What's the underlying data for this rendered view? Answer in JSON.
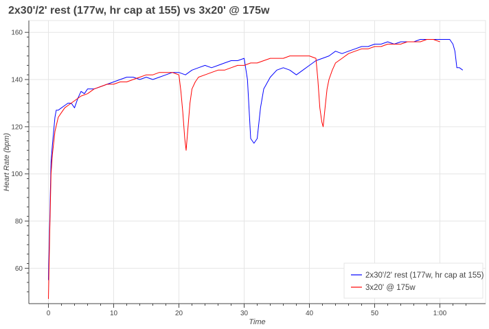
{
  "chart_data": {
    "type": "line",
    "title": "2x30'/2' rest (177w, hr cap at 155) vs 3x20' @ 175w",
    "xlabel": "Time",
    "ylabel": "Heart Rate (bpm)",
    "xlim": [
      -3,
      67
    ],
    "ylim": [
      45,
      165
    ],
    "xticks": [
      0,
      10,
      20,
      30,
      40,
      50,
      60
    ],
    "xtick_labels": [
      "0",
      "10",
      "20",
      "30",
      "40",
      "50",
      "1:00"
    ],
    "yticks": [
      60,
      80,
      100,
      120,
      140,
      160
    ],
    "ytick_labels": [
      "60",
      "80",
      "100",
      "120",
      "140",
      "160"
    ],
    "grid": true,
    "legend_position": "bottom-right",
    "series": [
      {
        "name": "2x30'/2' rest (177w, hr cap at 155)",
        "color": "#0000ff",
        "x": [
          0,
          0.2,
          0.4,
          0.6,
          0.8,
          1.0,
          1.2,
          1.5,
          2.0,
          2.5,
          3.0,
          3.5,
          4.0,
          4.5,
          5.0,
          5.5,
          6.0,
          7.0,
          8.0,
          9.0,
          10.0,
          11.0,
          12.0,
          13.0,
          14.0,
          15.0,
          16.0,
          17.0,
          18.0,
          19.0,
          20.0,
          21.0,
          22.0,
          23.0,
          24.0,
          25.0,
          26.0,
          27.0,
          28.0,
          29.0,
          30.0,
          30.5,
          31.0,
          31.5,
          32.0,
          32.5,
          33.0,
          34.0,
          35.0,
          36.0,
          37.0,
          38.0,
          39.0,
          40.0,
          41.0,
          42.0,
          43.0,
          44.0,
          45.0,
          46.0,
          47.0,
          48.0,
          49.0,
          50.0,
          51.0,
          52.0,
          53.0,
          54.0,
          55.0,
          56.0,
          57.0,
          58.0,
          59.0,
          60.0,
          61.0,
          61.5,
          62.0,
          62.3,
          62.6,
          63.0,
          63.5
        ],
        "y": [
          55,
          80,
          105,
          112,
          118,
          124,
          127,
          127,
          128,
          129,
          130,
          130,
          128,
          132,
          135,
          134,
          136,
          136,
          137,
          138,
          139,
          140,
          141,
          141,
          140,
          141,
          140,
          141,
          142,
          143,
          143,
          142,
          144,
          145,
          146,
          145,
          146,
          147,
          148,
          148,
          149,
          140,
          115,
          113,
          115,
          128,
          136,
          141,
          144,
          145,
          144,
          142,
          144,
          146,
          148,
          149,
          150,
          152,
          151,
          152,
          153,
          154,
          154,
          155,
          155,
          156,
          155,
          156,
          156,
          156,
          157,
          157,
          157,
          157,
          157,
          157,
          155,
          152,
          145,
          145,
          144
        ]
      },
      {
        "name": "3x20' @ 175w",
        "color": "#ff0000",
        "x": [
          0,
          0.2,
          0.4,
          0.6,
          0.8,
          1.0,
          1.5,
          2.0,
          2.5,
          3.0,
          4.0,
          5.0,
          6.0,
          7.0,
          8.0,
          9.0,
          10.0,
          11.0,
          12.0,
          13.0,
          14.0,
          15.0,
          16.0,
          17.0,
          18.0,
          19.0,
          20.0,
          20.3,
          20.6,
          20.9,
          21.1,
          21.4,
          21.7,
          22.0,
          22.5,
          23.0,
          24.0,
          25.0,
          26.0,
          27.0,
          28.0,
          29.0,
          30.0,
          31.0,
          32.0,
          33.0,
          34.0,
          35.0,
          36.0,
          37.0,
          38.0,
          39.0,
          40.0,
          41.0,
          41.3,
          41.6,
          41.9,
          42.1,
          42.4,
          42.7,
          43.0,
          43.5,
          44.0,
          45.0,
          46.0,
          47.0,
          48.0,
          49.0,
          50.0,
          51.0,
          52.0,
          53.0,
          54.0,
          55.0,
          56.0,
          57.0,
          58.0,
          59.0,
          60.0
        ],
        "y": [
          47,
          75,
          100,
          108,
          113,
          118,
          124,
          126,
          128,
          129,
          131,
          133,
          134,
          136,
          137,
          138,
          138,
          139,
          139,
          140,
          141,
          142,
          142,
          143,
          143,
          143,
          142,
          135,
          126,
          115,
          110,
          120,
          130,
          136,
          139,
          141,
          142,
          143,
          144,
          144,
          145,
          146,
          146,
          147,
          147,
          148,
          149,
          149,
          149,
          150,
          150,
          150,
          150,
          149,
          140,
          128,
          122,
          120,
          128,
          136,
          140,
          144,
          147,
          149,
          151,
          152,
          153,
          153,
          154,
          154,
          155,
          155,
          155,
          156,
          156,
          156,
          157,
          157,
          156
        ]
      }
    ]
  }
}
